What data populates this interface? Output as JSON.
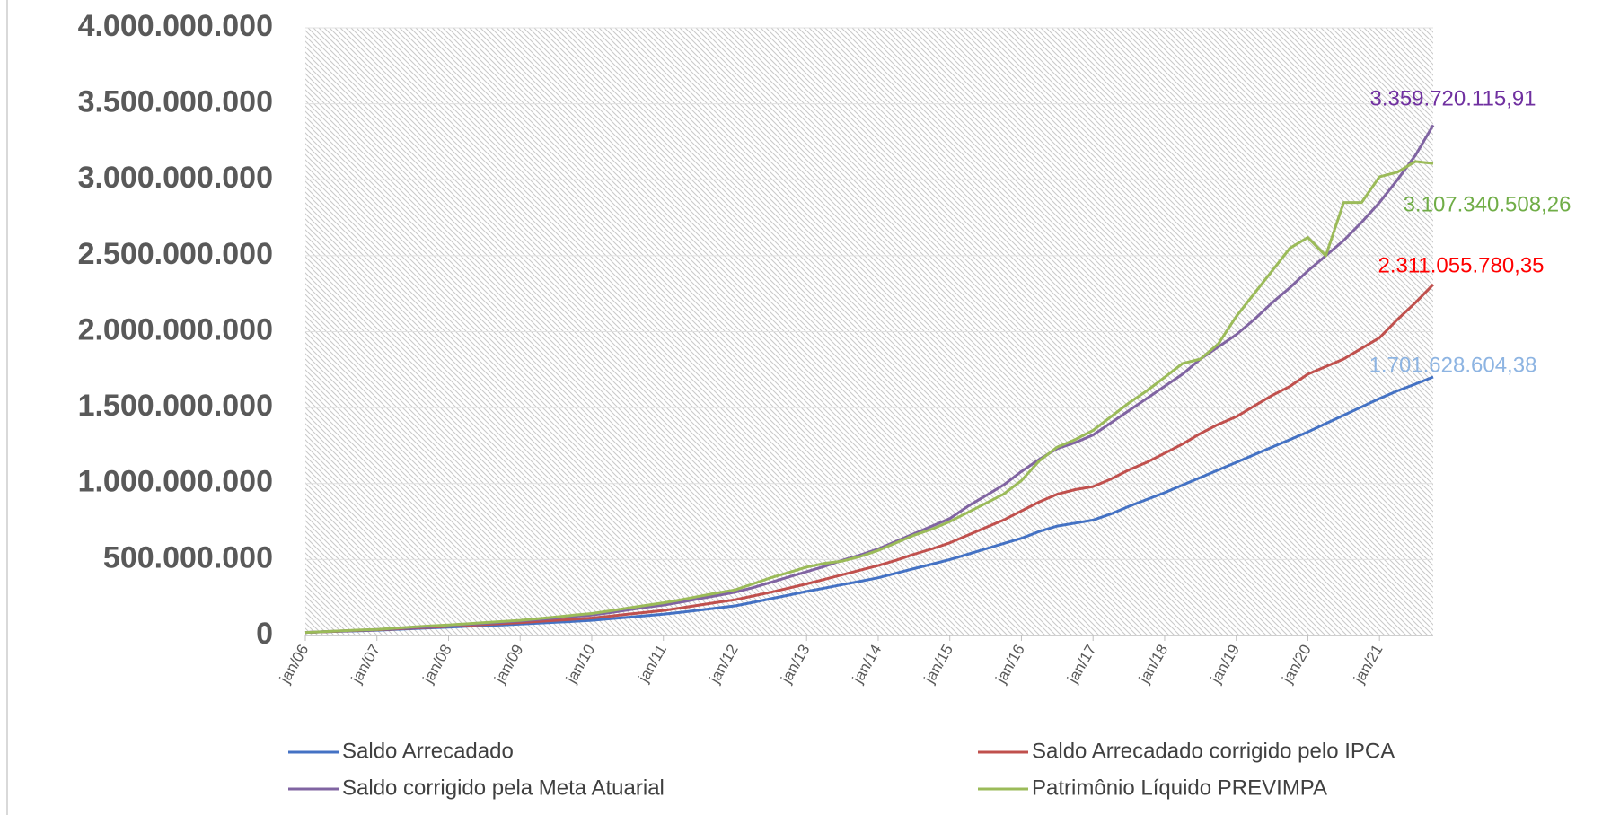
{
  "chart_data": {
    "type": "line",
    "categories": [
      "jan/06",
      null,
      null,
      null,
      "jan/07",
      null,
      null,
      null,
      "jan/08",
      null,
      null,
      null,
      "jan/09",
      null,
      null,
      null,
      "jan/10",
      null,
      null,
      null,
      "jan/11",
      null,
      null,
      null,
      "jan/12",
      null,
      null,
      null,
      "jan/13",
      null,
      null,
      null,
      "jan/14",
      null,
      null,
      null,
      "jan/15",
      null,
      null,
      null,
      "jan/16",
      null,
      null,
      null,
      "jan/17",
      null,
      null,
      null,
      "jan/18",
      null,
      null,
      null,
      "jan/19",
      null,
      null,
      null,
      "jan/20",
      null,
      null,
      null,
      "jan/21",
      null,
      null,
      null
    ],
    "series": [
      {
        "name": "Saldo Arrecadado",
        "color": "#4472c4",
        "label_color": "#8db4e2",
        "values": [
          20000000,
          24000000,
          28000000,
          31000000,
          35000000,
          40000000,
          45000000,
          50000000,
          55000000,
          60000000,
          65000000,
          70000000,
          75000000,
          81000000,
          87000000,
          93000000,
          100000000,
          110000000,
          120000000,
          130000000,
          140000000,
          153000000,
          167000000,
          181000000,
          195000000,
          218000000,
          242000000,
          266000000,
          290000000,
          312000000,
          335000000,
          357000000,
          380000000,
          410000000,
          440000000,
          470000000,
          500000000,
          535000000,
          570000000,
          605000000,
          640000000,
          685000000,
          720000000,
          740000000,
          760000000,
          800000000,
          850000000,
          895000000,
          940000000,
          990000000,
          1040000000,
          1090000000,
          1140000000,
          1190000000,
          1240000000,
          1290000000,
          1340000000,
          1395000000,
          1450000000,
          1505000000,
          1560000000,
          1610000000,
          1655000000,
          1701628604.38
        ],
        "value_labels": [
          null,
          null,
          null,
          null,
          null,
          null,
          null,
          null,
          null,
          null,
          null,
          null,
          null,
          null,
          null,
          null,
          null,
          null,
          null,
          null,
          null,
          null,
          null,
          null,
          null,
          null,
          null,
          null,
          null,
          null,
          null,
          null,
          null,
          null,
          null,
          null,
          null,
          null,
          null,
          null,
          null,
          null,
          null,
          null,
          null,
          null,
          null,
          null,
          null,
          null,
          null,
          null,
          null,
          null,
          null,
          null,
          null,
          null,
          null,
          null,
          null,
          null,
          null,
          "1.701.628.604,38"
        ]
      },
      {
        "name": "Saldo Arrecadado corrigido pelo IPCA",
        "color": "#c0504d",
        "label_color": "#ff0000",
        "values": [
          20000000,
          24000000,
          29000000,
          33000000,
          38000000,
          43000000,
          49000000,
          54000000,
          60000000,
          66000000,
          72000000,
          78000000,
          85000000,
          92000000,
          100000000,
          107000000,
          115000000,
          127000000,
          140000000,
          152000000,
          165000000,
          182000000,
          200000000,
          218000000,
          235000000,
          260000000,
          285000000,
          312000000,
          340000000,
          370000000,
          400000000,
          430000000,
          460000000,
          495000000,
          535000000,
          570000000,
          610000000,
          660000000,
          710000000,
          760000000,
          820000000,
          880000000,
          930000000,
          960000000,
          980000000,
          1030000000,
          1090000000,
          1140000000,
          1200000000,
          1260000000,
          1330000000,
          1390000000,
          1440000000,
          1510000000,
          1580000000,
          1640000000,
          1720000000,
          1770000000,
          1820000000,
          1890000000,
          1960000000,
          2080000000,
          2190000000,
          2311055780.35
        ],
        "value_labels": [
          null,
          null,
          null,
          null,
          null,
          null,
          null,
          null,
          null,
          null,
          null,
          null,
          null,
          null,
          null,
          null,
          null,
          null,
          null,
          null,
          null,
          null,
          null,
          null,
          null,
          null,
          null,
          null,
          null,
          null,
          null,
          null,
          null,
          null,
          null,
          null,
          null,
          null,
          null,
          null,
          null,
          null,
          null,
          null,
          null,
          null,
          null,
          null,
          null,
          null,
          null,
          null,
          null,
          null,
          null,
          null,
          null,
          null,
          null,
          null,
          null,
          null,
          null,
          "2.311.055.780,35"
        ]
      },
      {
        "name": "Saldo corrigido pela Meta Atuarial",
        "color": "#8064a2",
        "label_color": "#7030a0",
        "values": [
          20000000,
          25000000,
          30000000,
          35000000,
          40000000,
          46000000,
          52000000,
          58000000,
          65000000,
          72000000,
          80000000,
          87000000,
          95000000,
          105000000,
          115000000,
          125000000,
          135000000,
          150000000,
          168000000,
          185000000,
          200000000,
          220000000,
          242000000,
          263000000,
          285000000,
          315000000,
          350000000,
          385000000,
          420000000,
          455000000,
          495000000,
          530000000,
          570000000,
          620000000,
          670000000,
          720000000,
          770000000,
          850000000,
          920000000,
          990000000,
          1080000000,
          1160000000,
          1230000000,
          1270000000,
          1320000000,
          1400000000,
          1480000000,
          1560000000,
          1640000000,
          1720000000,
          1820000000,
          1900000000,
          1980000000,
          2080000000,
          2190000000,
          2290000000,
          2400000000,
          2500000000,
          2600000000,
          2720000000,
          2850000000,
          3000000000,
          3160000000,
          3359720115.91
        ],
        "value_labels": [
          null,
          null,
          null,
          null,
          null,
          null,
          null,
          null,
          null,
          null,
          null,
          null,
          null,
          null,
          null,
          null,
          null,
          null,
          null,
          null,
          null,
          null,
          null,
          null,
          null,
          null,
          null,
          null,
          null,
          null,
          null,
          null,
          null,
          null,
          null,
          null,
          null,
          null,
          null,
          null,
          null,
          null,
          null,
          null,
          null,
          null,
          null,
          null,
          null,
          null,
          null,
          null,
          null,
          null,
          null,
          null,
          null,
          null,
          null,
          null,
          null,
          null,
          null,
          "3.359.720.115,91"
        ]
      },
      {
        "name": "Patrimônio Líquido PREVIMPA",
        "color": "#9bbb59",
        "label_color": "#70ad47",
        "values": [
          20000000,
          25000000,
          31000000,
          36000000,
          40000000,
          48000000,
          56000000,
          63000000,
          70000000,
          77000000,
          85000000,
          92000000,
          100000000,
          111000000,
          122000000,
          134000000,
          145000000,
          162000000,
          180000000,
          198000000,
          215000000,
          236000000,
          258000000,
          280000000,
          300000000,
          340000000,
          380000000,
          415000000,
          450000000,
          475000000,
          490000000,
          520000000,
          560000000,
          610000000,
          660000000,
          700000000,
          750000000,
          810000000,
          870000000,
          930000000,
          1020000000,
          1150000000,
          1240000000,
          1290000000,
          1350000000,
          1440000000,
          1530000000,
          1610000000,
          1700000000,
          1790000000,
          1820000000,
          1920000000,
          2100000000,
          2250000000,
          2400000000,
          2550000000,
          2620000000,
          2500000000,
          2850000000,
          2850000000,
          3020000000,
          3050000000,
          3120000000,
          3107340508.26
        ],
        "value_labels": [
          null,
          null,
          null,
          null,
          null,
          null,
          null,
          null,
          null,
          null,
          null,
          null,
          null,
          null,
          null,
          null,
          null,
          null,
          null,
          null,
          null,
          null,
          null,
          null,
          null,
          null,
          null,
          null,
          null,
          null,
          null,
          null,
          null,
          null,
          null,
          null,
          null,
          null,
          null,
          null,
          null,
          null,
          null,
          null,
          null,
          null,
          null,
          null,
          null,
          null,
          null,
          null,
          null,
          null,
          null,
          null,
          null,
          null,
          null,
          null,
          null,
          null,
          null,
          "3.107.340.508,26"
        ]
      }
    ],
    "ylim": [
      0,
      4000000000
    ],
    "yticks": [
      0,
      {
        "value": 500000000,
        "label": "500.000.000"
      },
      {
        "value": 1000000000,
        "label": "1.000.000.000"
      },
      {
        "value": 1500000000,
        "label": "1.500.000.000"
      },
      {
        "value": 2000000000,
        "label": "2.000.000.000"
      },
      {
        "value": 2500000000,
        "label": "2.500.000.000"
      },
      {
        "value": 3000000000,
        "label": "3.000.000.000"
      },
      {
        "value": 3500000000,
        "label": "3.500.000.000"
      },
      {
        "value": 4000000000,
        "label": "4.000.000.000"
      }
    ],
    "grid": true,
    "legend": "bottom"
  }
}
